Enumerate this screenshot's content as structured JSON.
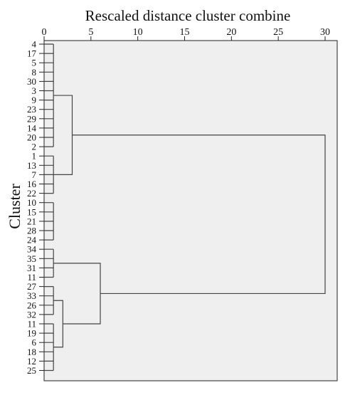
{
  "chart_data": {
    "type": "dendrogram",
    "title": "Rescaled distance cluster combine",
    "xlabel": "Rescaled distance cluster combine",
    "ylabel": "Cluster",
    "xlim": [
      0,
      30
    ],
    "xticks": [
      0,
      5,
      10,
      15,
      20,
      25,
      30
    ],
    "leaves": [
      "4",
      "17",
      "5",
      "8",
      "30",
      "3",
      "9",
      "23",
      "29",
      "14",
      "20",
      "2",
      "1",
      "13",
      "7",
      "16",
      "22",
      "10",
      "15",
      "21",
      "28",
      "24",
      "34",
      "35",
      "31",
      "11",
      "27",
      "33",
      "26",
      "32",
      "11",
      "19",
      "6",
      "18",
      "12",
      "25"
    ],
    "merges": [
      {
        "name": "cluster-A",
        "leaf_range": [
          0,
          11
        ],
        "distance": 1.0
      },
      {
        "name": "cluster-B",
        "leaf_range": [
          12,
          16
        ],
        "distance": 1.0
      },
      {
        "name": "cluster-C",
        "leaf_range": [
          17,
          21
        ],
        "distance": 1.0
      },
      {
        "name": "cluster-AB",
        "children": [
          "cluster-A",
          "cluster-B"
        ],
        "distance": 3.0
      },
      {
        "name": "cluster-D",
        "leaf_range": [
          22,
          25
        ],
        "distance": 1.0
      },
      {
        "name": "cluster-E",
        "leaf_range": [
          26,
          29
        ],
        "distance": 1.0
      },
      {
        "name": "cluster-F",
        "leaf_range": [
          30,
          35
        ],
        "distance": 1.0
      },
      {
        "name": "cluster-EF",
        "children": [
          "cluster-E",
          "cluster-F"
        ],
        "distance": 2.0
      },
      {
        "name": "cluster-DEF",
        "children": [
          "cluster-D",
          "cluster-EF"
        ],
        "distance": 6.0
      },
      {
        "name": "cluster-root",
        "children": [
          "cluster-AB",
          "cluster-DEF"
        ],
        "distance": 30.0
      }
    ]
  }
}
